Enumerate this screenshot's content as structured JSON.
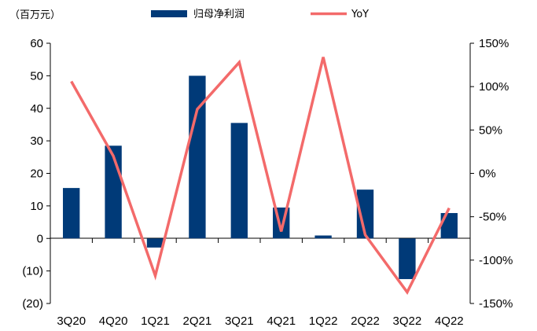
{
  "chart_data": {
    "type": "bar",
    "unit_label": "（百万元）",
    "categories": [
      "3Q20",
      "4Q20",
      "1Q21",
      "2Q21",
      "3Q21",
      "4Q21",
      "1Q22",
      "2Q22",
      "3Q22",
      "4Q22"
    ],
    "series": [
      {
        "name": "归母净利润",
        "type": "bar",
        "axis": "left",
        "color": "#003A78",
        "values": [
          15.5,
          28.5,
          -2.8,
          50.0,
          35.5,
          9.5,
          0.9,
          15.0,
          -12.5,
          7.8
        ]
      },
      {
        "name": "YoY",
        "type": "line",
        "axis": "right",
        "color": "#F36A6A",
        "values": [
          106,
          20,
          -118,
          74,
          128,
          -67,
          134,
          -71,
          -137,
          -40
        ]
      }
    ],
    "left_axis": {
      "ylim": [
        -20,
        60
      ],
      "ticks": [
        -20,
        -10,
        0,
        10,
        20,
        30,
        40,
        50,
        60
      ],
      "tick_labels": [
        "(20)",
        "(10)",
        "0",
        "10",
        "20",
        "30",
        "40",
        "50",
        "60"
      ]
    },
    "right_axis": {
      "ylim": [
        -150,
        150
      ],
      "ticks": [
        -150,
        -100,
        -50,
        0,
        50,
        100,
        150
      ],
      "tick_labels": [
        "-150%",
        "-100%",
        "-50%",
        "0%",
        "50%",
        "100%",
        "150%"
      ]
    },
    "legend_position": "top",
    "grid": false
  }
}
